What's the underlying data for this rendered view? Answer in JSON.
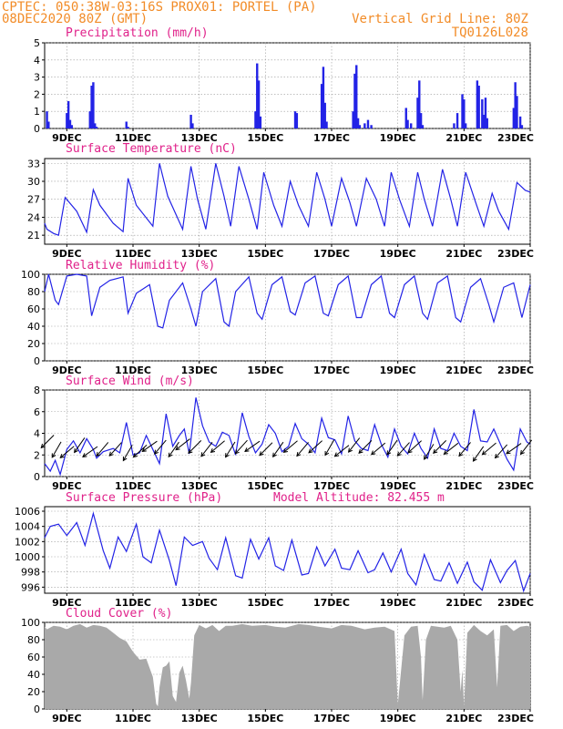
{
  "header": {
    "line1_left": "CPTEC:   050:38W-03:16S  PROX01: PORTEL (PA)",
    "line2_left": "08DEC2020 80Z (GMT)",
    "line2_right": "Vertical Grid Line: 80Z",
    "line3_right": "TQ0126L028"
  },
  "colors": {
    "header": "#f28c28",
    "title": "#e0218a",
    "series": "#2323e6",
    "bars": "#2323e6",
    "cloud": "#a9a9a9",
    "arrows": "#000000",
    "grid": "#9a9a9a"
  },
  "x_axis": {
    "labels": [
      "9DEC",
      "11DEC",
      "13DEC",
      "15DEC",
      "17DEC",
      "19DEC",
      "21DEC",
      "23DEC"
    ],
    "label_day": [
      9,
      11,
      13,
      15,
      17,
      19,
      21,
      23
    ],
    "start_day": 8.33,
    "end_day": 23
  },
  "chart_data": [
    {
      "type": "bar",
      "title": "Precipitation (mm/h)",
      "ylim": [
        0,
        5
      ],
      "yticks": [
        0,
        1,
        2,
        3,
        4,
        5
      ],
      "x": [
        8.4,
        8.45,
        9.0,
        9.05,
        9.1,
        9.15,
        9.7,
        9.75,
        9.8,
        9.85,
        9.9,
        10.8,
        10.85,
        12.75,
        12.8,
        14.7,
        14.75,
        14.8,
        14.85,
        15.9,
        15.95,
        16.7,
        16.75,
        16.8,
        16.85,
        17.65,
        17.7,
        17.75,
        17.8,
        17.85,
        18.0,
        18.1,
        18.2,
        19.25,
        19.3,
        19.4,
        19.6,
        19.65,
        19.7,
        19.75,
        20.7,
        20.8,
        20.95,
        21.0,
        21.05,
        21.4,
        21.45,
        21.55,
        21.6,
        21.65,
        21.7,
        22.5,
        22.55,
        22.6,
        22.7,
        22.75
      ],
      "values": [
        1.0,
        0.4,
        0.9,
        1.6,
        0.5,
        0.2,
        1.0,
        2.5,
        2.7,
        0.3,
        0.1,
        0.4,
        0.1,
        0.8,
        0.3,
        1.0,
        3.8,
        2.8,
        0.7,
        1.0,
        0.9,
        2.6,
        3.6,
        1.5,
        0.4,
        1.0,
        3.2,
        3.7,
        0.6,
        0.2,
        0.3,
        0.5,
        0.2,
        1.2,
        0.5,
        0.3,
        1.8,
        2.8,
        0.9,
        0.2,
        0.3,
        0.9,
        2.0,
        1.7,
        0.3,
        2.8,
        2.5,
        1.7,
        0.8,
        1.8,
        0.6,
        1.2,
        2.7,
        1.9,
        0.7,
        0.2
      ]
    },
    {
      "type": "line",
      "title": "Surface Temperature (nC)",
      "ylim": [
        19.5,
        33.8
      ],
      "yticks": [
        21,
        24,
        27,
        30,
        33
      ],
      "x": [
        8.33,
        8.4,
        8.6,
        8.75,
        8.95,
        9.3,
        9.6,
        9.8,
        10.0,
        10.4,
        10.7,
        10.85,
        11.1,
        11.6,
        11.8,
        12.05,
        12.5,
        12.75,
        12.95,
        13.2,
        13.5,
        13.75,
        13.95,
        14.2,
        14.5,
        14.75,
        14.95,
        15.25,
        15.5,
        15.75,
        16.0,
        16.3,
        16.55,
        16.8,
        17.0,
        17.3,
        17.55,
        17.75,
        18.05,
        18.35,
        18.6,
        18.8,
        19.05,
        19.35,
        19.6,
        19.8,
        20.05,
        20.35,
        20.6,
        20.8,
        21.05,
        21.35,
        21.6,
        21.85,
        22.05,
        22.35,
        22.6,
        22.85,
        23.0
      ],
      "values": [
        23,
        22,
        21.3,
        21,
        27.3,
        25,
        21.5,
        28.6,
        26,
        23,
        21.6,
        30.5,
        26,
        22.5,
        33,
        27.5,
        22,
        32.5,
        27,
        22,
        33,
        27.5,
        22.5,
        32.5,
        27,
        22,
        31.5,
        26,
        22.5,
        30,
        26,
        22.5,
        31.5,
        27,
        22.5,
        30.5,
        26.5,
        22.5,
        30.5,
        27,
        22.5,
        31.5,
        27,
        22.5,
        31.5,
        27,
        22.5,
        32,
        27,
        22.5,
        31.5,
        26.5,
        22.5,
        28,
        25,
        22,
        29.8,
        28.5,
        28.2
      ]
    },
    {
      "type": "line",
      "title": "Relative Humidity (%)",
      "ylim": [
        0,
        100
      ],
      "yticks": [
        0,
        20,
        40,
        60,
        80,
        100
      ],
      "x": [
        8.33,
        8.45,
        8.65,
        8.75,
        9.0,
        9.3,
        9.6,
        9.75,
        10.0,
        10.3,
        10.7,
        10.85,
        11.1,
        11.5,
        11.75,
        11.9,
        12.1,
        12.5,
        12.75,
        12.9,
        13.1,
        13.5,
        13.75,
        13.9,
        14.1,
        14.5,
        14.75,
        14.9,
        15.2,
        15.5,
        15.75,
        15.9,
        16.2,
        16.5,
        16.75,
        16.9,
        17.2,
        17.5,
        17.75,
        17.9,
        18.2,
        18.5,
        18.75,
        18.9,
        19.2,
        19.5,
        19.75,
        19.9,
        20.2,
        20.5,
        20.75,
        20.9,
        21.2,
        21.5,
        21.75,
        21.9,
        22.2,
        22.5,
        22.75,
        23.0
      ],
      "values": [
        80,
        100,
        70,
        65,
        98,
        100,
        98,
        52,
        85,
        93,
        97,
        55,
        78,
        88,
        40,
        38,
        70,
        90,
        60,
        40,
        80,
        95,
        45,
        40,
        80,
        97,
        55,
        48,
        88,
        97,
        57,
        53,
        90,
        98,
        55,
        52,
        88,
        98,
        50,
        50,
        88,
        98,
        55,
        50,
        88,
        98,
        55,
        48,
        90,
        98,
        50,
        45,
        85,
        95,
        65,
        45,
        85,
        90,
        50,
        88
      ]
    },
    {
      "type": "line",
      "title": "Surface Wind (m/s)",
      "ylim": [
        0,
        8
      ],
      "yticks": [
        0,
        2,
        4,
        6,
        8
      ],
      "x": [
        8.33,
        8.5,
        8.65,
        8.8,
        9.0,
        9.2,
        9.4,
        9.6,
        9.8,
        9.9,
        10.1,
        10.4,
        10.6,
        10.8,
        11.0,
        11.2,
        11.4,
        11.6,
        11.8,
        12.0,
        12.2,
        12.4,
        12.55,
        12.7,
        12.9,
        13.1,
        13.3,
        13.5,
        13.7,
        13.9,
        14.1,
        14.3,
        14.5,
        14.7,
        14.9,
        15.1,
        15.3,
        15.5,
        15.7,
        15.9,
        16.1,
        16.3,
        16.5,
        16.7,
        16.9,
        17.1,
        17.3,
        17.5,
        17.7,
        17.9,
        18.1,
        18.3,
        18.5,
        18.7,
        18.9,
        19.1,
        19.3,
        19.5,
        19.7,
        19.9,
        20.1,
        20.3,
        20.5,
        20.7,
        20.9,
        21.1,
        21.3,
        21.5,
        21.7,
        21.9,
        22.1,
        22.3,
        22.5,
        22.7,
        22.9,
        23.0
      ],
      "values": [
        1.2,
        0.5,
        1.5,
        0.2,
        2.5,
        3.3,
        2.2,
        3.5,
        2.5,
        1.7,
        2.3,
        2.6,
        2.2,
        5.0,
        2.0,
        2.2,
        3.8,
        2.5,
        1.2,
        5.8,
        2.8,
        3.8,
        4.4,
        2.1,
        7.3,
        4.7,
        3.2,
        2.8,
        4.1,
        3.8,
        2.0,
        5.9,
        3.7,
        2.2,
        3.0,
        4.8,
        4.0,
        2.3,
        2.8,
        4.9,
        3.5,
        3.0,
        2.2,
        5.4,
        3.6,
        3.4,
        2.1,
        5.6,
        3.3,
        2.6,
        2.4,
        4.8,
        3.0,
        1.8,
        4.4,
        2.8,
        2.1,
        4.0,
        2.6,
        1.7,
        4.4,
        2.6,
        2.4,
        4.0,
        2.8,
        2.4,
        6.2,
        3.3,
        3.2,
        4.4,
        3.0,
        1.6,
        0.6,
        4.4,
        3.2,
        3.0
      ]
    },
    {
      "type": "line",
      "title": "Surface Pressure (hPa)",
      "subtitle": "Model Altitude: 82.455 m",
      "ylim": [
        995.2,
        1006.6
      ],
      "yticks": [
        996,
        998,
        1000,
        1002,
        1004,
        1006
      ],
      "x": [
        8.33,
        8.5,
        8.75,
        9.0,
        9.3,
        9.55,
        9.8,
        10.1,
        10.3,
        10.55,
        10.8,
        11.1,
        11.3,
        11.55,
        11.8,
        12.1,
        12.3,
        12.55,
        12.8,
        13.1,
        13.3,
        13.55,
        13.8,
        14.1,
        14.3,
        14.55,
        14.8,
        15.1,
        15.3,
        15.55,
        15.8,
        16.1,
        16.3,
        16.55,
        16.8,
        17.1,
        17.3,
        17.55,
        17.8,
        18.1,
        18.3,
        18.55,
        18.8,
        19.1,
        19.3,
        19.55,
        19.8,
        20.1,
        20.3,
        20.55,
        20.8,
        21.1,
        21.3,
        21.55,
        21.8,
        22.1,
        22.3,
        22.55,
        22.8,
        23.0
      ],
      "values": [
        1002.5,
        1004,
        1004.3,
        1002.8,
        1004.5,
        1001.5,
        1005.7,
        1000.8,
        998.5,
        1002.6,
        1000.7,
        1004.3,
        1000,
        999.2,
        1003.5,
        999.5,
        996.2,
        1002.6,
        1001.5,
        1002,
        999.8,
        998.3,
        1002.5,
        997.5,
        997.2,
        1002.3,
        999.7,
        1002.5,
        998.8,
        998.2,
        1002.2,
        997.6,
        997.8,
        1001.3,
        998.8,
        1001,
        998.5,
        998.3,
        1000.8,
        997.9,
        998.3,
        1000.5,
        998,
        1001,
        997.8,
        996.3,
        1000.3,
        997,
        996.8,
        999.2,
        996.5,
        999.3,
        996.7,
        995.6,
        999.6,
        996.6,
        998.2,
        999.5,
        995.5,
        997.8
      ]
    },
    {
      "type": "area",
      "title": "Cloud Cover (%)",
      "ylim": [
        0,
        100
      ],
      "yticks": [
        0,
        20,
        40,
        60,
        80,
        100
      ],
      "x": [
        8.33,
        8.4,
        8.6,
        8.8,
        9.0,
        9.2,
        9.4,
        9.6,
        9.8,
        10.0,
        10.2,
        10.4,
        10.6,
        10.8,
        11.0,
        11.2,
        11.4,
        11.6,
        11.7,
        11.75,
        11.8,
        11.9,
        12.0,
        12.1,
        12.2,
        12.3,
        12.4,
        12.5,
        12.6,
        12.7,
        12.75,
        12.85,
        13.0,
        13.2,
        13.4,
        13.6,
        13.8,
        14.0,
        14.3,
        14.6,
        15.0,
        15.3,
        15.6,
        16.0,
        16.3,
        16.6,
        17.0,
        17.3,
        17.6,
        18.0,
        18.3,
        18.6,
        18.9,
        19.0,
        19.2,
        19.4,
        19.6,
        19.7,
        19.75,
        19.85,
        20.0,
        20.2,
        20.4,
        20.6,
        20.8,
        20.9,
        20.95,
        21.0,
        21.1,
        21.3,
        21.5,
        21.7,
        21.9,
        22.0,
        22.1,
        22.3,
        22.5,
        22.7,
        22.9,
        23.0
      ],
      "values": [
        95,
        92,
        96,
        95,
        92,
        96,
        98,
        94,
        97,
        96,
        94,
        88,
        82,
        78,
        66,
        57,
        58,
        37,
        6,
        3,
        25,
        48,
        50,
        55,
        15,
        8,
        42,
        50,
        33,
        12,
        30,
        85,
        97,
        93,
        97,
        90,
        96,
        96,
        98,
        96,
        97,
        95,
        94,
        98,
        97,
        95,
        93,
        97,
        96,
        92,
        94,
        95,
        90,
        5,
        85,
        95,
        96,
        60,
        10,
        80,
        96,
        95,
        94,
        96,
        80,
        20,
        45,
        3,
        88,
        97,
        90,
        85,
        92,
        25,
        96,
        97,
        90,
        95,
        96,
        95
      ]
    }
  ],
  "wind_arrows": {
    "x": [
      8.5,
      8.75,
      9.1,
      9.45,
      9.8,
      10.15,
      10.55,
      10.9,
      11.3,
      11.6,
      11.9,
      12.3,
      12.6,
      12.95,
      13.3,
      13.65,
      14.0,
      14.35,
      14.7,
      15.1,
      15.45,
      15.85,
      16.2,
      16.6,
      17.0,
      17.4,
      17.75,
      18.1,
      18.5,
      18.9,
      19.25,
      19.6,
      20.0,
      20.35,
      20.7,
      21.1,
      21.5,
      21.85,
      22.2,
      22.6,
      22.95
    ],
    "speed": [
      3.5,
      2.8,
      2.5,
      3.2,
      2.5,
      2.8,
      2.8,
      2.5,
      2.6,
      3.0,
      3.0,
      2.8,
      3.2,
      3.0,
      2.8,
      3.0,
      2.8,
      3.0,
      3.0,
      2.8,
      2.8,
      3.0,
      2.8,
      3.0,
      3.0,
      2.6,
      3.2,
      3.0,
      2.8,
      3.0,
      2.8,
      3.0,
      2.6,
      3.0,
      2.8,
      2.8,
      2.4,
      2.8,
      2.6,
      2.8,
      3.0
    ],
    "direction_deg": [
      45,
      60,
      40,
      55,
      35,
      50,
      48,
      60,
      42,
      35,
      50,
      55,
      38,
      45,
      52,
      40,
      58,
      48,
      35,
      45,
      55,
      40,
      50,
      42,
      60,
      38,
      52,
      45,
      40,
      55,
      48,
      42,
      58,
      45,
      38,
      50,
      55,
      40,
      48,
      35,
      52
    ]
  }
}
